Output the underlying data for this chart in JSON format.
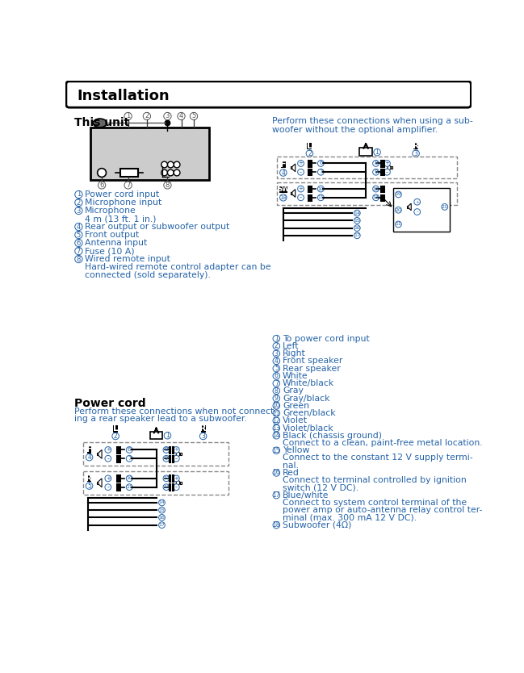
{
  "title": "Installation",
  "bg_color": "#ffffff",
  "black": "#000000",
  "blue": "#2563a8",
  "gray_box": "#d0d0d0",
  "section1_title": "This unit",
  "section2_title": "Power cord",
  "section3_header": "Perform these connections when using a sub-\nwoofer without the optional amplifier.",
  "power_cord_desc_line1": "Perform these connections when not connect-",
  "power_cord_desc_line2": "ing a rear speaker lead to a subwoofer.",
  "this_unit_items": [
    [
      1,
      "Power cord input",
      false
    ],
    [
      2,
      "Microphone input",
      false
    ],
    [
      3,
      "Microphone",
      true
    ],
    [
      4,
      "Rear output or subwoofer output",
      false
    ],
    [
      5,
      "Front output",
      false
    ],
    [
      6,
      "Antenna input",
      false
    ],
    [
      7,
      "Fuse (10 A)",
      false
    ],
    [
      8,
      "Wired remote input",
      true
    ]
  ],
  "this_unit_extras": {
    "3": "4 m (13 ft. 1 in.)",
    "8": "Hard-wired remote control adapter can be\nconnected (sold separately)."
  },
  "right_items": [
    [
      1,
      "To power cord input",
      false
    ],
    [
      2,
      "Left",
      false
    ],
    [
      3,
      "Right",
      false
    ],
    [
      4,
      "Front speaker",
      false
    ],
    [
      5,
      "Rear speaker",
      false
    ],
    [
      6,
      "White",
      false
    ],
    [
      7,
      "White/black",
      false
    ],
    [
      8,
      "Gray",
      false
    ],
    [
      9,
      "Gray/black",
      false
    ],
    [
      10,
      "Green",
      false
    ],
    [
      11,
      "Green/black",
      false
    ],
    [
      12,
      "Violet",
      false
    ],
    [
      13,
      "Violet/black",
      false
    ],
    [
      14,
      "Black (chassis ground)",
      true
    ],
    [
      15,
      "Yellow",
      true
    ],
    [
      16,
      "Red",
      true
    ],
    [
      17,
      "Blue/white",
      true
    ],
    [
      18,
      "Subwoofer (4Ω)",
      false
    ]
  ],
  "right_item_extras": {
    "14": "Connect to a clean, paint-free metal location.",
    "15": "Connect to the constant 12 V supply termi-\nnal.",
    "16": "Connect to terminal controlled by ignition\nswitch (12 V DC).",
    "17": "Connect to system control terminal of the\npower amp or auto-antenna relay control ter-\nminal (max. 300 mA 12 V DC)."
  }
}
